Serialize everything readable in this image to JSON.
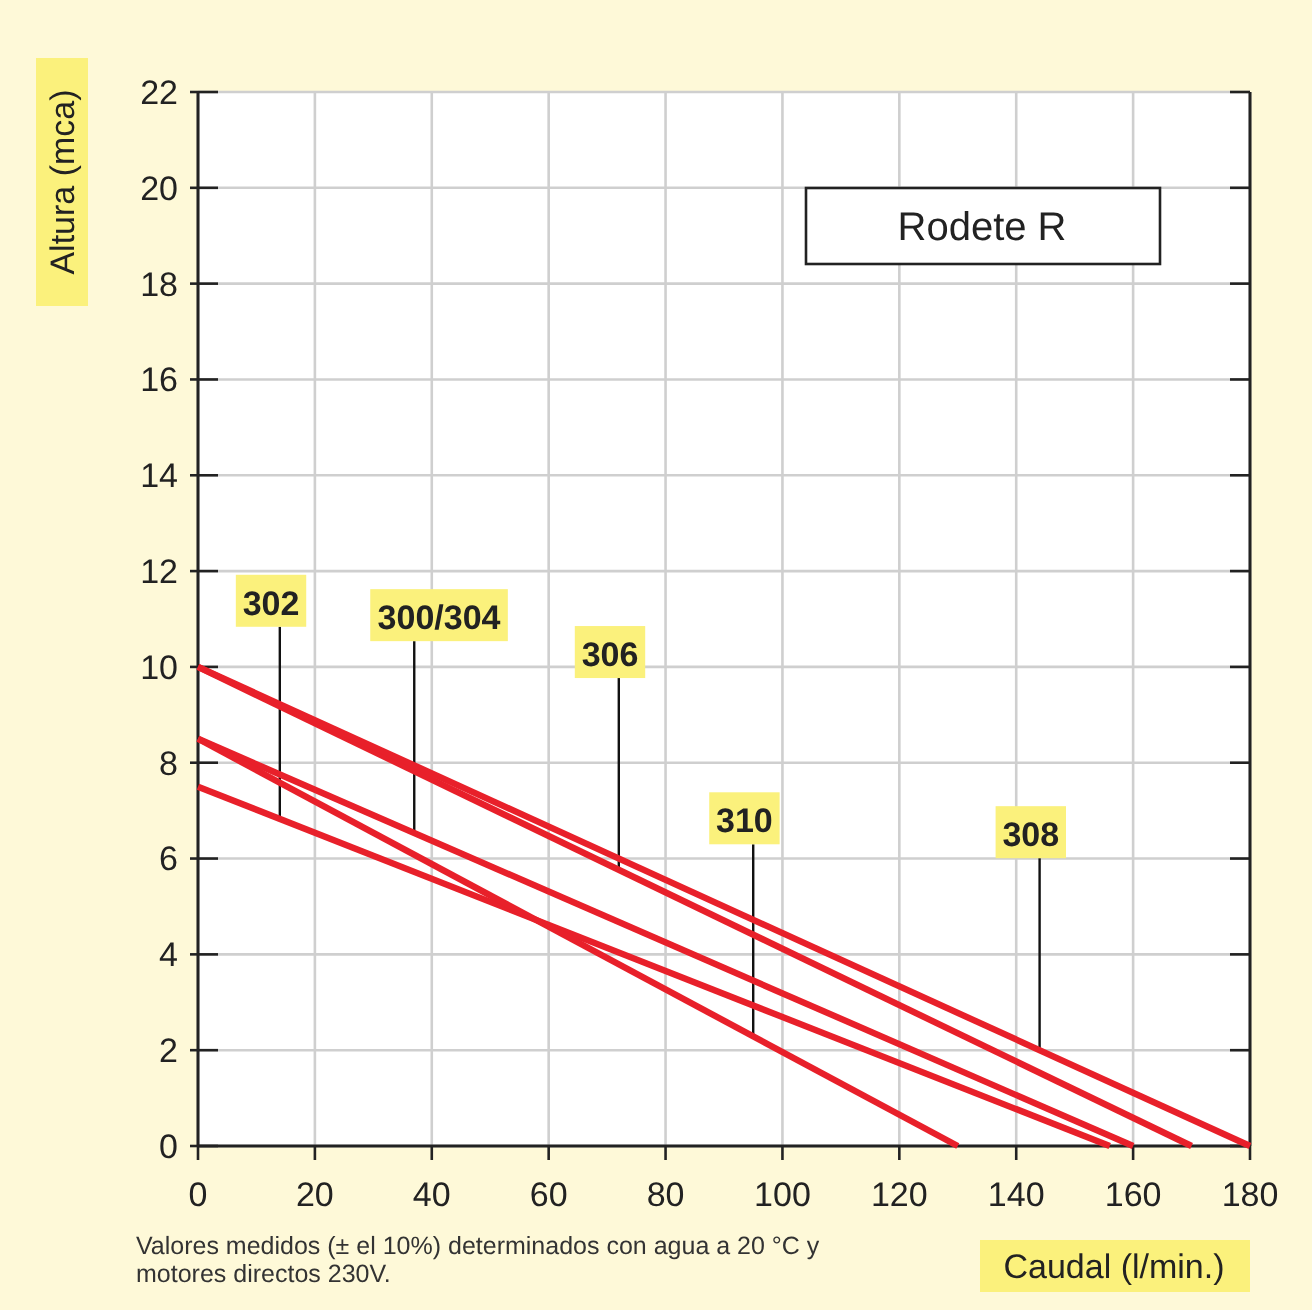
{
  "chart_data": {
    "type": "line",
    "title": "Rodete R",
    "xlabel": "Caudal (l/min.)",
    "ylabel": "Altura (mca)",
    "xlim": [
      0,
      180
    ],
    "xticks": [
      0,
      20,
      40,
      60,
      80,
      100,
      120,
      140,
      160,
      180
    ],
    "ylim": [
      0,
      22
    ],
    "yticks": [
      0,
      2,
      4,
      6,
      8,
      10,
      12,
      14,
      16,
      18,
      20,
      22
    ],
    "grid": true,
    "marker": "none",
    "line_style": "solid",
    "series": [
      {
        "color": "#e8202a",
        "x": [
          0,
          156
        ],
        "values": [
          7.5,
          0
        ]
      },
      {
        "color": "#e8202a",
        "x": [
          0,
          160
        ],
        "values": [
          8.5,
          0
        ]
      },
      {
        "color": "#e8202a",
        "x": [
          0,
          170
        ],
        "values": [
          10,
          0
        ]
      },
      {
        "color": "#e8202a",
        "x": [
          0,
          130
        ],
        "values": [
          8.5,
          0
        ]
      },
      {
        "color": "#e8202a",
        "x": [
          0,
          180
        ],
        "values": [
          10,
          0
        ]
      }
    ],
    "annotations": [
      {
        "text": "302",
        "x": 14,
        "y": 6.83
      },
      {
        "text": "300/304",
        "x": 37,
        "y": 6.53
      },
      {
        "text": "306",
        "x": 72,
        "y": 5.76
      },
      {
        "text": "310",
        "x": 95,
        "y": 2.29
      },
      {
        "text": "308",
        "x": 144,
        "y": 2
      },
      "Valores medidos (± el 10%) determinados con agua a 20 °C y motores directos 230V."
    ]
  }
}
